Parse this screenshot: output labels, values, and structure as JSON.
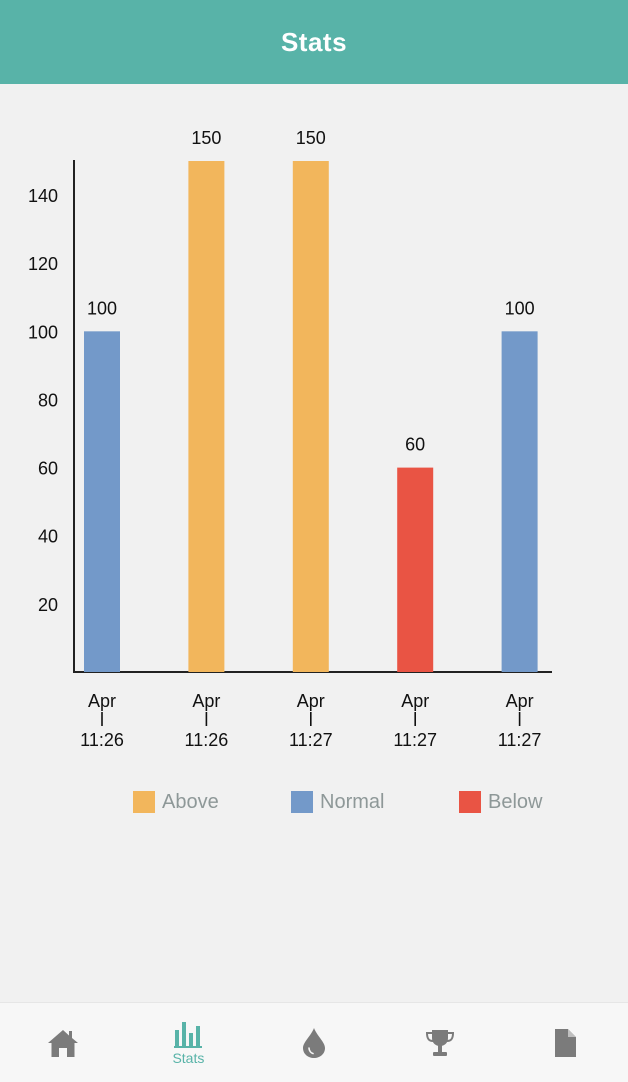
{
  "header": {
    "title": "Stats"
  },
  "colors": {
    "header_bg": "#58b3a8",
    "above": "#f2b65c",
    "normal": "#7399c9",
    "below": "#e95444",
    "tab_active": "#58b3a8",
    "tab_inactive": "#7b7b7b"
  },
  "chart_data": {
    "type": "bar",
    "title": "",
    "xlabel": "",
    "ylabel": "",
    "ylim": [
      0,
      150
    ],
    "yticks": [
      20,
      40,
      60,
      80,
      100,
      120,
      140
    ],
    "grid": false,
    "legend_position": "bottom",
    "categories": [
      {
        "top": "Apr",
        "bottom": "11:26"
      },
      {
        "top": "Apr",
        "bottom": "11:26"
      },
      {
        "top": "Apr",
        "bottom": "11:27"
      },
      {
        "top": "Apr",
        "bottom": "11:27"
      },
      {
        "top": "Apr",
        "bottom": "11:27"
      }
    ],
    "values": [
      100,
      150,
      150,
      60,
      100
    ],
    "value_labels": [
      "100",
      "150",
      "150",
      "60",
      "100"
    ],
    "bar_status": [
      "normal",
      "above",
      "above",
      "below",
      "normal"
    ],
    "legend": [
      {
        "key": "above",
        "label": "Above"
      },
      {
        "key": "normal",
        "label": "Normal"
      },
      {
        "key": "below",
        "label": "Below"
      }
    ]
  },
  "tabbar": {
    "items": [
      {
        "icon": "home-icon",
        "label": "",
        "active": false
      },
      {
        "icon": "stats-icon",
        "label": "Stats",
        "active": true
      },
      {
        "icon": "drop-icon",
        "label": "",
        "active": false
      },
      {
        "icon": "trophy-icon",
        "label": "",
        "active": false
      },
      {
        "icon": "document-icon",
        "label": "",
        "active": false
      }
    ]
  }
}
